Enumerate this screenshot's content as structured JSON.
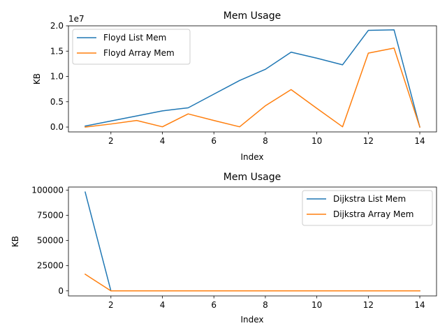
{
  "chart_data": [
    {
      "type": "line",
      "title": "Mem Usage",
      "xlabel": "Index",
      "ylabel": "KB",
      "offset_text": "1e7",
      "x": [
        1,
        2,
        3,
        4,
        5,
        6,
        7,
        8,
        9,
        10,
        11,
        12,
        13,
        14
      ],
      "xlim": [
        0.35,
        14.65
      ],
      "ylim": [
        -0.96,
        20.0
      ],
      "xticks": [
        2,
        4,
        6,
        8,
        10,
        12,
        14
      ],
      "xtick_labels": [
        "2",
        "4",
        "6",
        "8",
        "10",
        "12",
        "14"
      ],
      "yticks": [
        0,
        5,
        10,
        15,
        20
      ],
      "ytick_labels": [
        "0.0",
        "0.5",
        "1.0",
        "1.5",
        "2.0"
      ],
      "legend_loc": "upper left",
      "series": [
        {
          "name": "Floyd List Mem",
          "color": "#1f77b4",
          "values": [
            0.2,
            1.2,
            2.2,
            3.2,
            3.8,
            6.5,
            9.2,
            11.4,
            14.8,
            13.6,
            12.3,
            19.1,
            19.2,
            0.0
          ]
        },
        {
          "name": "Floyd Array Mem",
          "color": "#ff7f0e",
          "values": [
            0.0,
            0.6,
            1.3,
            0.05,
            2.6,
            1.3,
            0.05,
            4.2,
            7.4,
            3.7,
            0.05,
            14.6,
            15.6,
            0.0
          ]
        }
      ]
    },
    {
      "type": "line",
      "title": "Mem Usage",
      "xlabel": "Index",
      "ylabel": "KB",
      "x": [
        1,
        2,
        3,
        4,
        5,
        6,
        7,
        8,
        9,
        10,
        11,
        12,
        13,
        14
      ],
      "xlim": [
        0.35,
        14.65
      ],
      "ylim": [
        -5000,
        103000
      ],
      "xticks": [
        2,
        4,
        6,
        8,
        10,
        12,
        14
      ],
      "xtick_labels": [
        "2",
        "4",
        "6",
        "8",
        "10",
        "12",
        "14"
      ],
      "yticks": [
        0,
        25000,
        50000,
        75000,
        100000
      ],
      "ytick_labels": [
        "0",
        "25000",
        "50000",
        "75000",
        "100000"
      ],
      "legend_loc": "upper right",
      "series": [
        {
          "name": "Dijkstra List Mem",
          "color": "#1f77b4",
          "values": [
            98000,
            0,
            0,
            0,
            0,
            0,
            0,
            0,
            0,
            0,
            0,
            0,
            0,
            0
          ]
        },
        {
          "name": "Dijkstra Array Mem",
          "color": "#ff7f0e",
          "values": [
            16500,
            0,
            0,
            0,
            0,
            0,
            0,
            0,
            0,
            0,
            0,
            0,
            0,
            0
          ]
        }
      ]
    }
  ]
}
